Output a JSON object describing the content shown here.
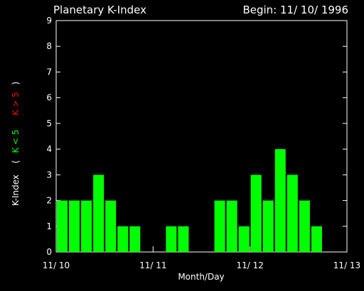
{
  "chart_data": {
    "type": "bar",
    "title": "Planetary K-Index",
    "subtitle": "Begin: 11/ 10/ 1996",
    "xlabel": "Month/Day",
    "ylabel": "K-Index",
    "legend_open": "(",
    "legend_close": ")",
    "legend": [
      {
        "label": "K < 5",
        "color": "#00ff00"
      },
      {
        "label": "K > 5",
        "color": "#ff0000"
      }
    ],
    "categories": [
      null,
      null,
      null,
      null,
      null,
      null,
      null,
      null,
      null,
      null,
      null,
      null,
      null,
      null,
      null,
      null,
      null,
      null,
      null,
      null,
      null,
      null,
      null,
      null
    ],
    "values": [
      2,
      2,
      2,
      3,
      2,
      1,
      1,
      null,
      null,
      1,
      1,
      null,
      null,
      2,
      2,
      1,
      3,
      2,
      4,
      3,
      2,
      1,
      null,
      null
    ],
    "color": "#00ff00",
    "xlim": [
      0,
      24
    ],
    "xticks": [
      {
        "value": 0,
        "label": "11/ 10"
      },
      {
        "value": 8,
        "label": "11/ 11"
      },
      {
        "value": 16,
        "label": "11/ 12"
      },
      {
        "value": 24,
        "label": "11/ 13"
      }
    ],
    "ylim": [
      0,
      9
    ],
    "yticks": [
      0,
      1,
      2,
      3,
      4,
      5,
      6,
      7,
      8,
      9
    ],
    "grid": false
  }
}
